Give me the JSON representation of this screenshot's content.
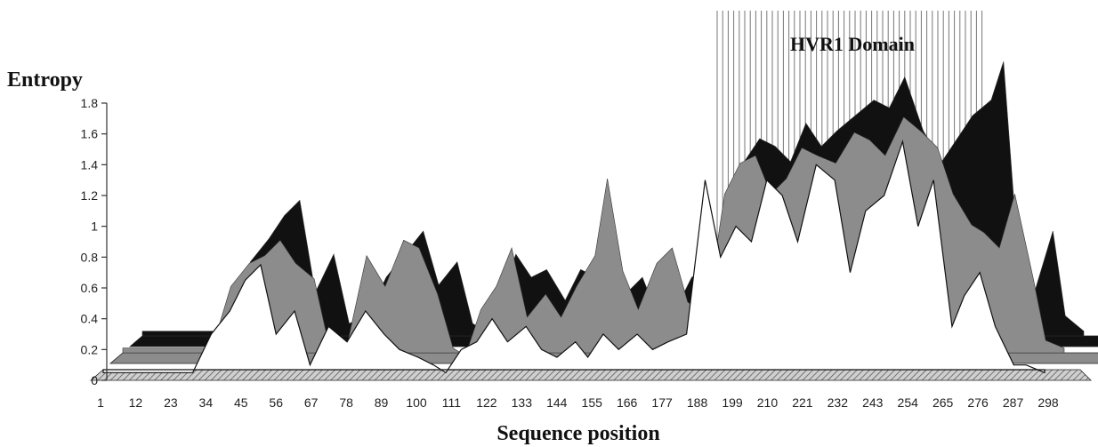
{
  "chart_data": {
    "type": "area",
    "title": "",
    "ylabel": "Entropy",
    "xlabel": "Sequence position",
    "annotation": "HVR1 Domain",
    "region": [
      192,
      276
    ],
    "ylim": [
      0,
      1.8
    ],
    "yticks": [
      "0",
      "0.2",
      "0.4",
      "0.6",
      "0.8",
      "1",
      "1.2",
      "1.4",
      "1.6",
      "1.8"
    ],
    "xticks": [
      1,
      12,
      23,
      34,
      45,
      56,
      67,
      78,
      89,
      100,
      111,
      122,
      133,
      144,
      155,
      166,
      177,
      188,
      199,
      210,
      221,
      232,
      243,
      254,
      265,
      276,
      287,
      298
    ],
    "x": [
      1,
      30,
      36,
      42,
      47,
      52,
      57,
      63,
      68,
      74,
      80,
      86,
      92,
      97,
      103,
      108,
      112,
      117,
      122,
      127,
      132,
      138,
      143,
      148,
      154,
      158,
      163,
      168,
      174,
      179,
      184,
      190,
      196,
      201,
      206,
      211,
      216,
      221,
      226,
      232,
      238,
      243,
      248,
      254,
      260,
      265,
      270,
      276,
      280,
      285,
      290,
      296,
      300,
      306
    ],
    "series": [
      {
        "color": "#111111",
        "values": [
          0.1,
          0.1,
          0.55,
          0.7,
          0.85,
          0.95,
          0.35,
          0.6,
          0.15,
          0.2,
          0.45,
          0.6,
          0.75,
          0.4,
          0.55,
          0.15,
          0.1,
          0.3,
          0.6,
          0.45,
          0.5,
          0.3,
          0.5,
          0.45,
          0.55,
          0.35,
          0.45,
          0.2,
          0.25,
          0.45,
          0.5,
          0.45,
          1.2,
          1.35,
          1.3,
          1.2,
          1.45,
          1.3,
          1.4,
          1.5,
          1.6,
          1.55,
          1.75,
          1.4,
          1.2,
          1.35,
          1.5,
          1.6,
          1.85,
          0.5,
          0.35,
          0.75,
          0.2,
          0.1
        ]
      },
      {
        "color": "#8c8c8c",
        "values": [
          0.1,
          0.1,
          0.5,
          0.65,
          0.7,
          0.8,
          0.65,
          0.55,
          0.1,
          0.15,
          0.7,
          0.5,
          0.8,
          0.75,
          0.45,
          0.1,
          0.05,
          0.35,
          0.5,
          0.75,
          0.3,
          0.45,
          0.3,
          0.5,
          0.7,
          1.2,
          0.6,
          0.35,
          0.65,
          0.75,
          0.4,
          0.3,
          1.1,
          1.3,
          1.35,
          1.1,
          1.2,
          1.4,
          1.35,
          1.3,
          1.5,
          1.45,
          1.35,
          1.6,
          1.5,
          1.4,
          1.1,
          0.9,
          0.85,
          0.75,
          1.1,
          0.55,
          0.15,
          0.1
        ]
      },
      {
        "color": "#ffffff",
        "values": [
          0.05,
          0.05,
          0.3,
          0.45,
          0.65,
          0.75,
          0.3,
          0.45,
          0.1,
          0.35,
          0.25,
          0.45,
          0.3,
          0.2,
          0.15,
          0.1,
          0.05,
          0.2,
          0.25,
          0.4,
          0.25,
          0.35,
          0.2,
          0.15,
          0.25,
          0.15,
          0.3,
          0.2,
          0.3,
          0.2,
          0.25,
          0.3,
          1.3,
          0.8,
          1.0,
          0.9,
          1.3,
          1.2,
          0.9,
          1.4,
          1.3,
          0.7,
          1.1,
          1.2,
          1.55,
          1.0,
          1.3,
          0.35,
          0.55,
          0.7,
          0.35,
          0.1,
          0.1,
          0.05
        ]
      }
    ]
  }
}
